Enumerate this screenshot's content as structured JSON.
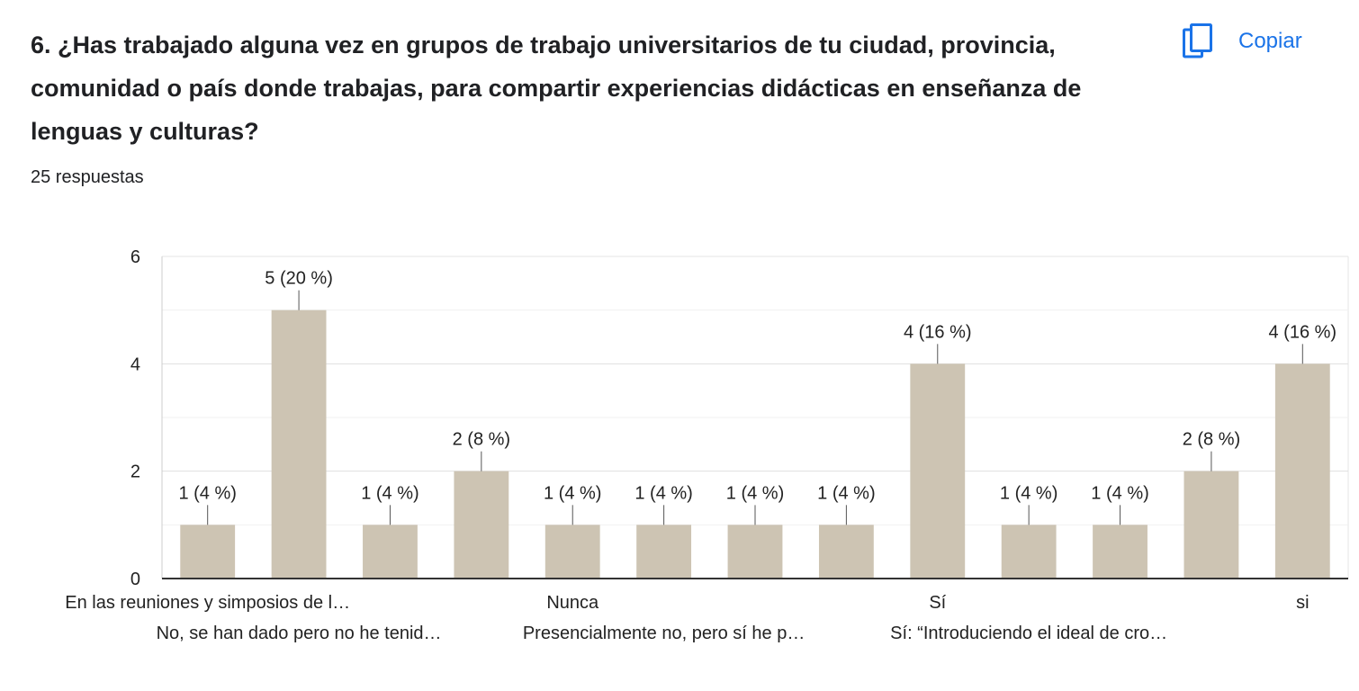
{
  "question": {
    "title": "6. ¿Has trabajado alguna vez en grupos de trabajo universitarios de tu ciudad, provincia, comunidad o país donde trabajas, para compartir experiencias didácticas en enseñanza de lenguas y culturas?",
    "response_count": "25 respuestas"
  },
  "copy_button": {
    "label": "Copiar",
    "icon": "copy-icon",
    "color": "#1a73e8"
  },
  "chart_data": {
    "type": "bar",
    "title": "",
    "xlabel": "",
    "ylabel": "",
    "ylim": [
      0,
      6
    ],
    "yticks": [
      0,
      2,
      4,
      6
    ],
    "grid": true,
    "bar_color": "#cdc4b3",
    "categories": [
      "En las reuniones y simposios de l…",
      "No, se han dado pero no he tenid…",
      "",
      "",
      "Nunca",
      "Presencialmente no, pero sí he p…",
      "",
      "",
      "Sí",
      "Sí: “Introduciendo el ideal de cro…",
      "",
      "",
      "si"
    ],
    "values": [
      1,
      5,
      1,
      2,
      1,
      1,
      1,
      1,
      4,
      1,
      1,
      2,
      4
    ],
    "data_labels": [
      "1 (4 %)",
      "5 (20 %)",
      "1 (4 %)",
      "2 (8 %)",
      "1 (4 %)",
      "1 (4 %)",
      "1 (4 %)",
      "1 (4 %)",
      "4 (16 %)",
      "1 (4 %)",
      "1 (4 %)",
      "2 (8 %)",
      "4 (16 %)"
    ]
  }
}
